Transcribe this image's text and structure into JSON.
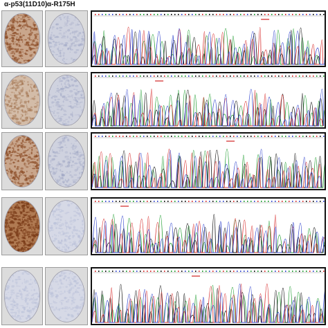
{
  "figure": {
    "columns": [
      {
        "label": "α-p53(11D10)"
      },
      {
        "label": "α-R175H"
      }
    ],
    "rows": [
      {
        "stain_a": "heavy",
        "stain_b": "light"
      },
      {
        "stain_a": "medium",
        "stain_b": "light"
      },
      {
        "stain_a": "heavy",
        "stain_b": "light"
      },
      {
        "stain_a": "very-heavy",
        "stain_b": "none"
      },
      {
        "stain_a": "none",
        "stain_b": "none"
      }
    ],
    "colors": {
      "trace_green": "#2aa23a",
      "trace_black": "#1a1a1a",
      "trace_red": "#d93535",
      "trace_blue": "#3c4ed0",
      "stain_brown": "#8a4a24",
      "tissue_blue": "#b8bfd8",
      "marker": "#d02020"
    }
  }
}
